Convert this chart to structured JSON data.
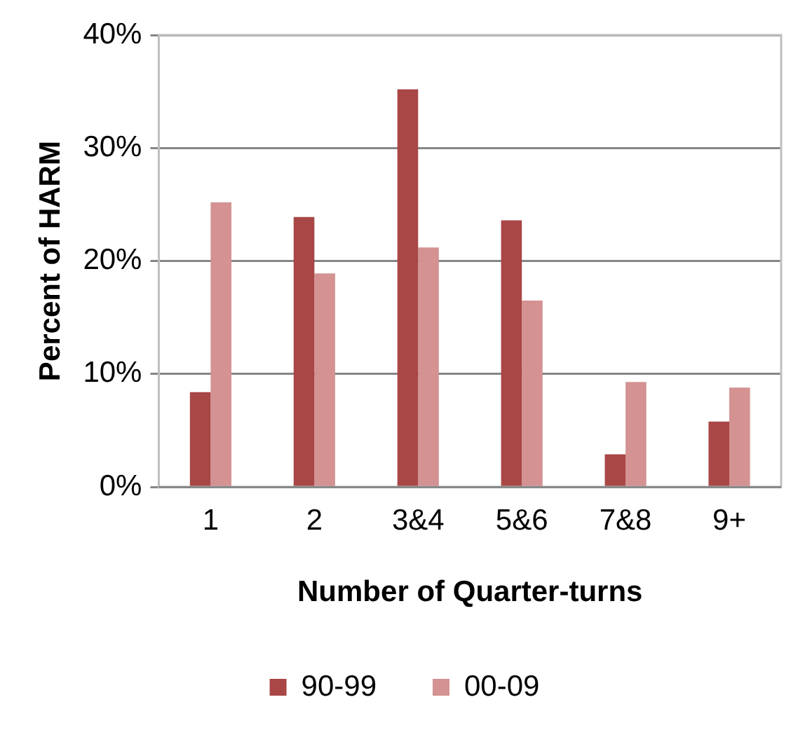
{
  "chart_data": {
    "type": "bar",
    "xlabel": "Number of Quarter-turns",
    "ylabel": "Percent of HARM",
    "categories": [
      "1",
      "2",
      "3&4",
      "5&6",
      "7&8",
      "9+"
    ],
    "series": [
      {
        "name": "90-99",
        "color": "#a94646",
        "values": [
          8.4,
          23.9,
          35.2,
          23.6,
          2.9,
          5.8
        ]
      },
      {
        "name": "00-09",
        "color": "#d49292",
        "values": [
          25.2,
          18.9,
          21.2,
          16.5,
          9.3,
          8.8
        ]
      }
    ],
    "ylim": [
      0,
      40
    ],
    "yticks": [
      {
        "value": 0,
        "label": "0%"
      },
      {
        "value": 10,
        "label": "10%"
      },
      {
        "value": 20,
        "label": "20%"
      },
      {
        "value": 30,
        "label": "30%"
      },
      {
        "value": 40,
        "label": "40%"
      }
    ],
    "grid": "y",
    "legend": "bottom"
  }
}
